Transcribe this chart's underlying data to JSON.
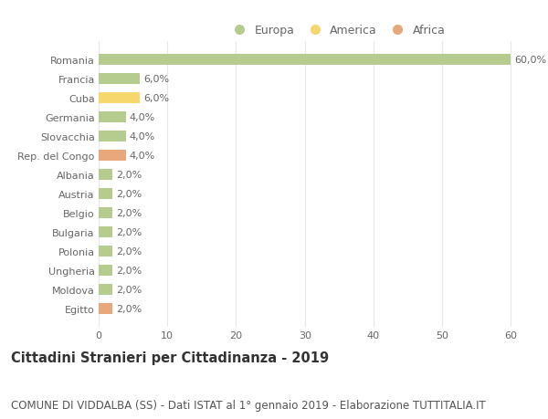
{
  "categories": [
    "Romania",
    "Francia",
    "Cuba",
    "Germania",
    "Slovacchia",
    "Rep. del Congo",
    "Albania",
    "Austria",
    "Belgio",
    "Bulgaria",
    "Polonia",
    "Ungheria",
    "Moldova",
    "Egitto"
  ],
  "values": [
    60.0,
    6.0,
    6.0,
    4.0,
    4.0,
    4.0,
    2.0,
    2.0,
    2.0,
    2.0,
    2.0,
    2.0,
    2.0,
    2.0
  ],
  "continents": [
    "Europa",
    "Europa",
    "America",
    "Europa",
    "Europa",
    "Africa",
    "Europa",
    "Europa",
    "Europa",
    "Europa",
    "Europa",
    "Europa",
    "Europa",
    "Africa"
  ],
  "colors": {
    "Europa": "#b5cc8e",
    "America": "#f5d76e",
    "Africa": "#e8a87c"
  },
  "legend_labels": [
    "Europa",
    "America",
    "Africa"
  ],
  "legend_colors": [
    "#b5cc8e",
    "#f5d76e",
    "#e8a87c"
  ],
  "title": "Cittadini Stranieri per Cittadinanza - 2019",
  "subtitle": "COMUNE DI VIDDALBA (SS) - Dati ISTAT al 1° gennaio 2019 - Elaborazione TUTTITALIA.IT",
  "xlim": [
    0,
    63
  ],
  "xticks": [
    0,
    10,
    20,
    30,
    40,
    50,
    60
  ],
  "background_color": "#ffffff",
  "grid_color": "#e8e8e8",
  "bar_height": 0.55,
  "title_fontsize": 10.5,
  "subtitle_fontsize": 8.5,
  "label_fontsize": 8,
  "tick_fontsize": 8,
  "legend_fontsize": 9
}
